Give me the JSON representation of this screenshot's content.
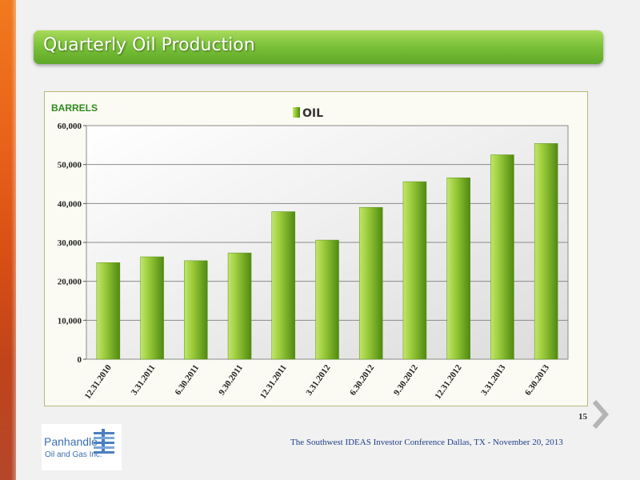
{
  "slide": {
    "title": "Quarterly Oil Production",
    "page_number": "15",
    "footer": "The Southwest  IDEAS Investor Conference Dallas, TX - November 20, 2013"
  },
  "logo": {
    "line1": "Panhandle",
    "line2": "Oil and Gas Inc."
  },
  "colors": {
    "bar_light": "#a6d64a",
    "bar_dark": "#4f8a10",
    "title_green": "#72b832",
    "axis_title_green": "#2e8a1e",
    "accent_orange": "#e8621a"
  },
  "chart_data": {
    "type": "bar",
    "title": "",
    "ylabel": "BARRELS",
    "xlabel": "",
    "legend": {
      "entries": [
        "OIL"
      ],
      "placement": "top-center"
    },
    "categories": [
      "12.31.2010",
      "3.31.2011",
      "6.30.2011",
      "9.30.2011",
      "12.31.2011",
      "3.31.2012",
      "6.30.2012",
      "9.30.2012",
      "12.31.2012",
      "3.31.2013",
      "6.30.2013"
    ],
    "series": [
      {
        "name": "OIL",
        "values": [
          24800,
          26300,
          25300,
          27300,
          37900,
          30600,
          39000,
          45600,
          46600,
          52500,
          55400
        ]
      }
    ],
    "ylim": [
      0,
      60000
    ],
    "yticks": [
      0,
      10000,
      20000,
      30000,
      40000,
      50000,
      60000
    ],
    "ytick_labels": [
      "0",
      "10,000",
      "20,000",
      "30,000",
      "40,000",
      "50,000",
      "60,000"
    ],
    "grid": true
  }
}
